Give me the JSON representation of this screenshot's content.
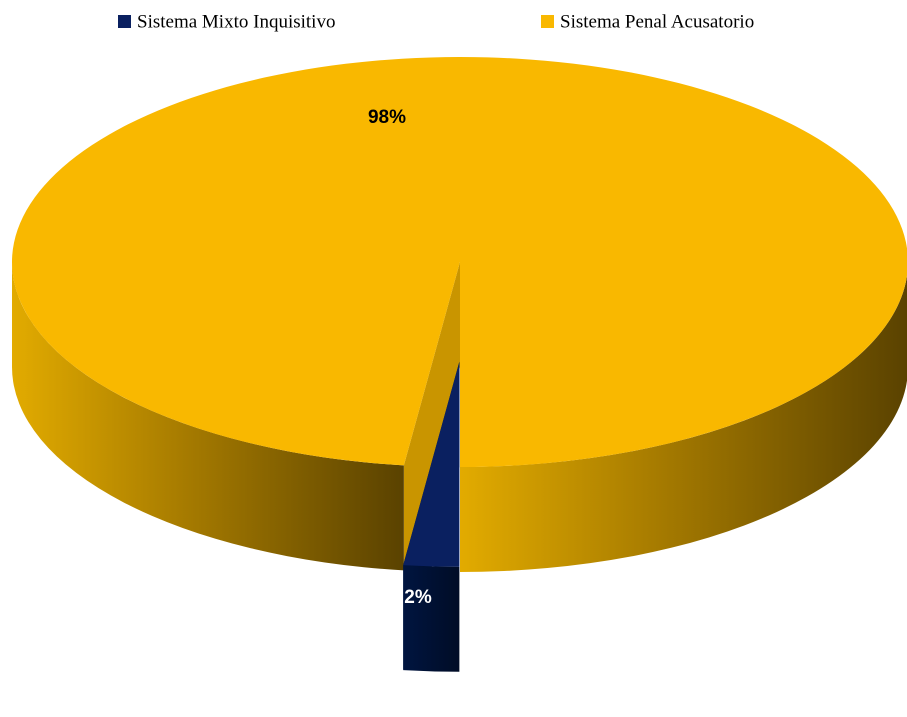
{
  "chart_data": {
    "type": "pie3d",
    "categories": [
      "Sistema Mixto Inquisitivo",
      "Sistema Penal Acusatorio"
    ],
    "values": [
      2,
      98
    ],
    "value_labels": [
      "2%",
      "98%"
    ],
    "colors": [
      "#0a2060",
      "#f9b800"
    ],
    "legend": "top"
  }
}
